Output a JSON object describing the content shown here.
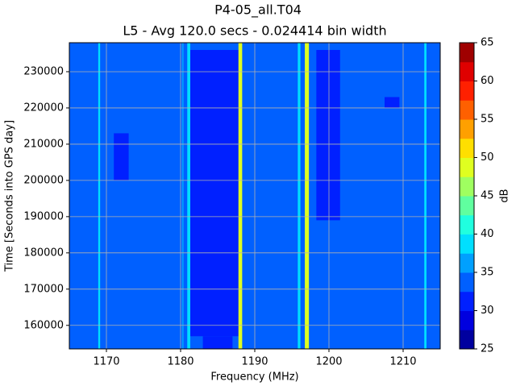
{
  "chart_data": {
    "type": "heatmap",
    "title": "P4-05_all.T04",
    "subtitle": "L5 - Avg 120.0 secs - 0.024414 bin width",
    "x_label": "Frequency (MHz)",
    "y_label": "Time [Seconds into GPS day]",
    "xlim": [
      1165,
      1215
    ],
    "ylim": [
      153500,
      238000
    ],
    "xticks": [
      1170,
      1180,
      1190,
      1200,
      1210
    ],
    "yticks": [
      160000,
      170000,
      180000,
      190000,
      200000,
      210000,
      220000,
      230000
    ],
    "grid": true,
    "background_value": 33,
    "regions": [
      {
        "x": [
          1181.3,
          1188
        ],
        "y": [
          157000,
          236000
        ],
        "value": 31
      },
      {
        "x": [
          1183,
          1187
        ],
        "y": [
          153500,
          157000
        ],
        "value": 31
      },
      {
        "x": [
          1198.3,
          1201.5
        ],
        "y": [
          189000,
          236000
        ],
        "value": 31
      },
      {
        "x": [
          1171,
          1173
        ],
        "y": [
          200000,
          213000
        ],
        "value": 31
      },
      {
        "x": [
          1207.5,
          1209.5
        ],
        "y": [
          220000,
          223000
        ],
        "value": 31
      },
      {
        "x": [
          1180.2,
          1180.4
        ],
        "y": [
          153500,
          238000
        ],
        "value": 36
      },
      {
        "x": [
          1168.9,
          1169.15
        ],
        "y": [
          153500,
          238000
        ],
        "value": 38
      },
      {
        "x": [
          1180.9,
          1181.3
        ],
        "y": [
          153500,
          238000
        ],
        "value": 38
      },
      {
        "x": [
          1195.8,
          1196.15
        ],
        "y": [
          153500,
          238000
        ],
        "value": 38
      },
      {
        "x": [
          1212.85,
          1213.15
        ],
        "y": [
          153500,
          238000
        ],
        "value": 38
      },
      {
        "x": [
          1187.8,
          1188.3
        ],
        "y": [
          153500,
          238000
        ],
        "value": 48
      },
      {
        "x": [
          1196.75,
          1197.3
        ],
        "y": [
          153500,
          238000
        ],
        "value": 48
      }
    ],
    "colorbar": {
      "label": "dB",
      "lim": [
        25,
        65
      ],
      "ticks": [
        25,
        30,
        35,
        40,
        45,
        50,
        55,
        60,
        65
      ],
      "colors": [
        "#00009f",
        "#0000df",
        "#0020ff",
        "#0060ff",
        "#00a0ff",
        "#00dfff",
        "#20ffdf",
        "#60ff9f",
        "#9fff60",
        "#dfff20",
        "#ffdf00",
        "#ffa000",
        "#ff6000",
        "#ff2000",
        "#df0000",
        "#9f0000"
      ]
    }
  }
}
